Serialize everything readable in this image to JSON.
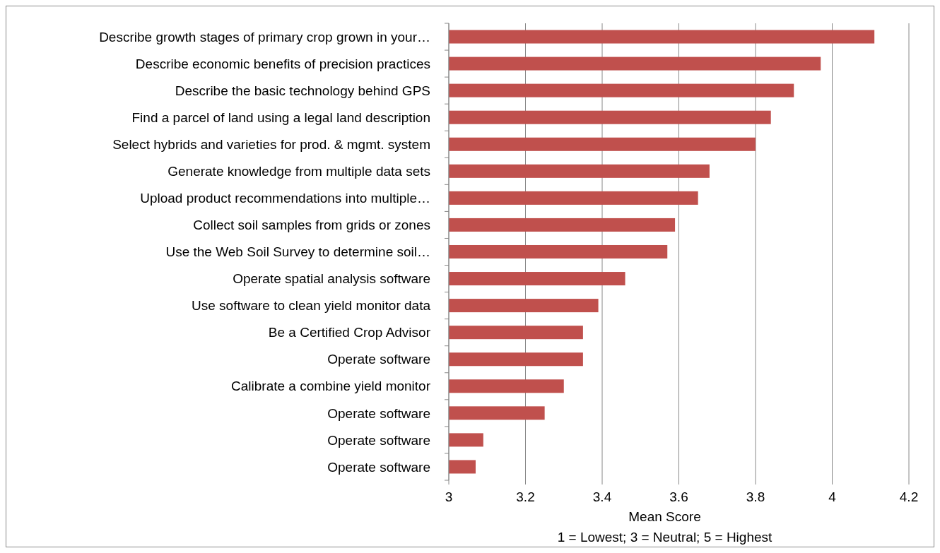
{
  "chart_data": {
    "type": "bar",
    "orientation": "horizontal",
    "xlabel": "Mean Score",
    "annotations": [
      "1 = Lowest; 3 = Neutral; 5 = Highest"
    ],
    "categories": [
      "Describe growth stages of primary crop grown in your…",
      "Describe economic benefits of precision practices",
      "Describe the basic technology behind GPS",
      "Find a parcel of land using a legal land description",
      "Select hybrids and varieties for prod. & mgmt. system",
      "Generate knowledge from multiple data sets",
      "Upload product recommendations into multiple…",
      "Collect soil samples from grids or zones",
      "Use the Web Soil Survey to determine soil…",
      "Operate spatial analysis software",
      "Use software to clean yield monitor data",
      "Be a Certified Crop Advisor",
      "Operate software",
      "Calibrate a combine yield monitor",
      "Operate software",
      "Operate software",
      "Operate software"
    ],
    "values": [
      4.11,
      3.97,
      3.9,
      3.84,
      3.8,
      3.68,
      3.65,
      3.59,
      3.57,
      3.46,
      3.39,
      3.35,
      3.35,
      3.3,
      3.25,
      3.09,
      3.07
    ],
    "color": "#c0504d",
    "xlim": [
      3,
      4.2
    ],
    "xticks": [
      3,
      3.2,
      3.4,
      3.6,
      3.8,
      4,
      4.2
    ],
    "grid": "x"
  }
}
